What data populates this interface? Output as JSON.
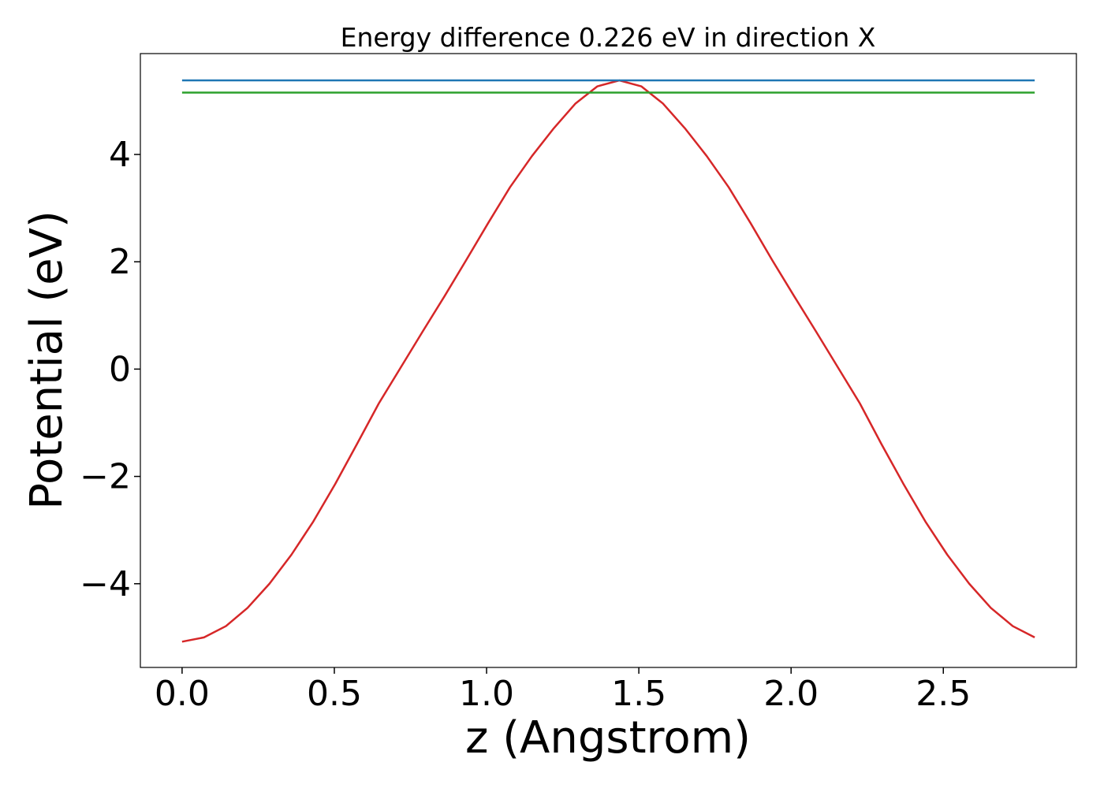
{
  "chart_data": {
    "type": "line",
    "title": "Energy difference 0.226 eV in direction X",
    "xlabel": "z (Angstrom)",
    "ylabel": "Potential (eV)",
    "xlim": [
      -0.137,
      2.937
    ],
    "ylim": [
      -5.56,
      5.88
    ],
    "xticks": [
      0.0,
      0.5,
      1.0,
      1.5,
      2.0,
      2.5
    ],
    "xtick_labels": [
      "0.0",
      "0.5",
      "1.0",
      "1.5",
      "2.0",
      "2.5"
    ],
    "yticks": [
      -4,
      -2,
      0,
      2,
      4
    ],
    "ytick_labels": [
      "−4",
      "−2",
      "0",
      "2",
      "4"
    ],
    "grid": false,
    "legend": "none",
    "series": [
      {
        "color": "#d62728",
        "x": [
          0.0,
          0.072,
          0.144,
          0.215,
          0.287,
          0.359,
          0.431,
          0.503,
          0.574,
          0.646,
          0.718,
          0.79,
          0.862,
          0.933,
          1.005,
          1.077,
          1.149,
          1.221,
          1.292,
          1.364,
          1.436,
          1.508,
          1.579,
          1.651,
          1.723,
          1.795,
          1.867,
          1.938,
          2.01,
          2.082,
          2.154,
          2.226,
          2.297,
          2.369,
          2.441,
          2.513,
          2.585,
          2.656,
          2.728,
          2.8
        ],
        "y": [
          -5.08,
          -5.0,
          -4.79,
          -4.45,
          -4.0,
          -3.46,
          -2.84,
          -2.14,
          -1.4,
          -0.64,
          0.03,
          0.7,
          1.36,
          2.03,
          2.72,
          3.39,
          3.97,
          4.49,
          4.95,
          5.27,
          5.38,
          5.27,
          4.95,
          4.49,
          3.97,
          3.39,
          2.72,
          2.03,
          1.36,
          0.7,
          0.03,
          -0.64,
          -1.4,
          -2.14,
          -2.84,
          -3.46,
          -4.0,
          -4.45,
          -4.79,
          -5.0
        ]
      },
      {
        "color": "#1f77b4",
        "x": [
          0.0,
          2.8
        ],
        "y": [
          5.38,
          5.38
        ]
      },
      {
        "color": "#2ca02c",
        "x": [
          0.0,
          2.8
        ],
        "y": [
          5.154,
          5.154
        ]
      }
    ]
  }
}
